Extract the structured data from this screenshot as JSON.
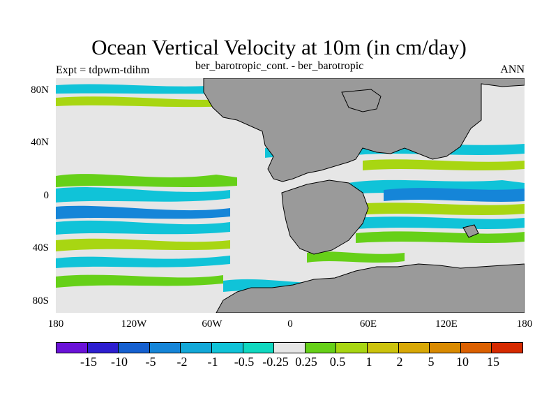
{
  "title": "Ocean Vertical Velocity at 10m (in cm/day)",
  "left_subtitle": "Expt = tdpwm-tdihm",
  "center_subtitle": "ber_barotropic_cont. - ber_barotropic",
  "right_subtitle": "ANN",
  "colors": {
    "land": "#9a9a9a",
    "near_zero": "#e6e6e6"
  },
  "y_axis_labels": [
    "80N",
    "40N",
    "0",
    "40S",
    "80S"
  ],
  "x_axis_labels": [
    "180",
    "120W",
    "60W",
    "0",
    "60E",
    "120E",
    "180"
  ],
  "colorbar": {
    "colors": [
      "#6a12d8",
      "#2d1ed0",
      "#1560d0",
      "#1585d8",
      "#12a8d8",
      "#10c3d8",
      "#10d8c0",
      "#e6e6e6",
      "#66d018",
      "#a8d612",
      "#ccc30c",
      "#d8a806",
      "#d98a00",
      "#db6000",
      "#d62a00"
    ],
    "labels": [
      "-15",
      "-10",
      "-5",
      "-2",
      "-1",
      "-0.5",
      "-0.25",
      "0.25",
      "0.5",
      "1",
      "2",
      "5",
      "10",
      "15"
    ]
  }
}
